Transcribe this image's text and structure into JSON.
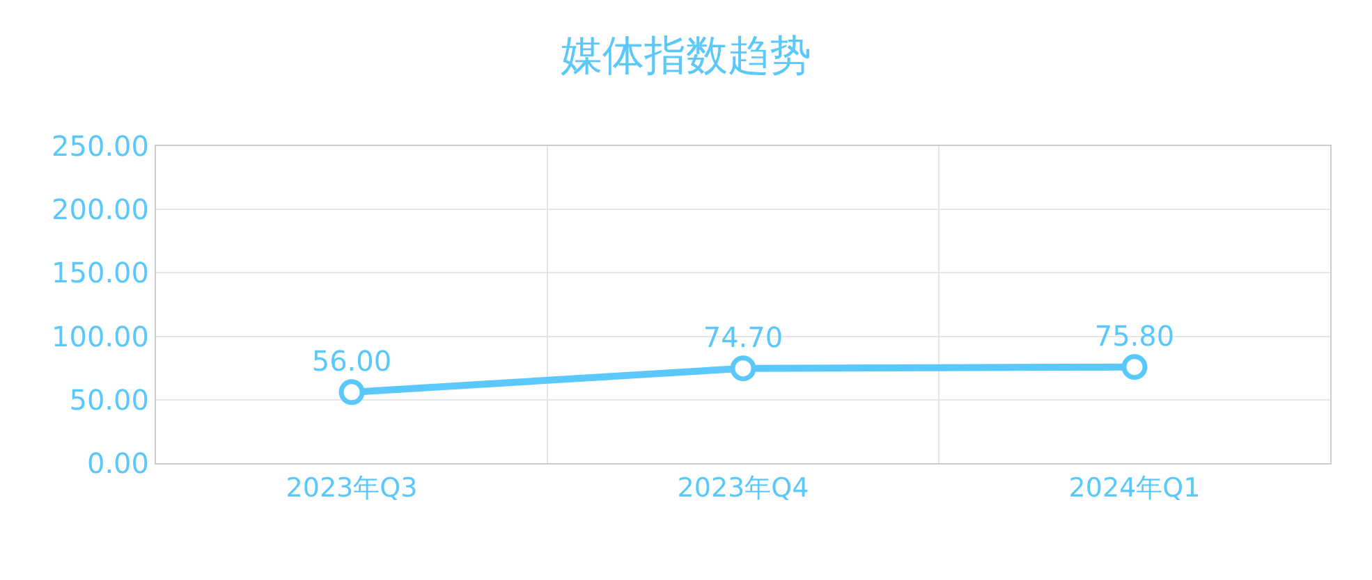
{
  "chart_data": {
    "type": "line",
    "title": "媒体指数趋势",
    "categories": [
      "2023年Q3",
      "2023年Q4",
      "2024年Q1"
    ],
    "series": [
      {
        "color": "#5ac8fa",
        "values": [
          56.0,
          74.7,
          75.8
        ]
      }
    ],
    "value_labels": [
      "56.00",
      "74.70",
      "75.80"
    ],
    "ylim": [
      0,
      250
    ],
    "yticks": [
      {
        "value": 0,
        "label": "0.00"
      },
      {
        "value": 50,
        "label": "50.00"
      },
      {
        "value": 100,
        "label": "100.00"
      },
      {
        "value": 150,
        "label": "150.00"
      },
      {
        "value": 200,
        "label": "200.00"
      },
      {
        "value": 250,
        "label": "250.00"
      }
    ],
    "grid": true,
    "marker": "circle",
    "line_style": "solid",
    "legend": false
  }
}
